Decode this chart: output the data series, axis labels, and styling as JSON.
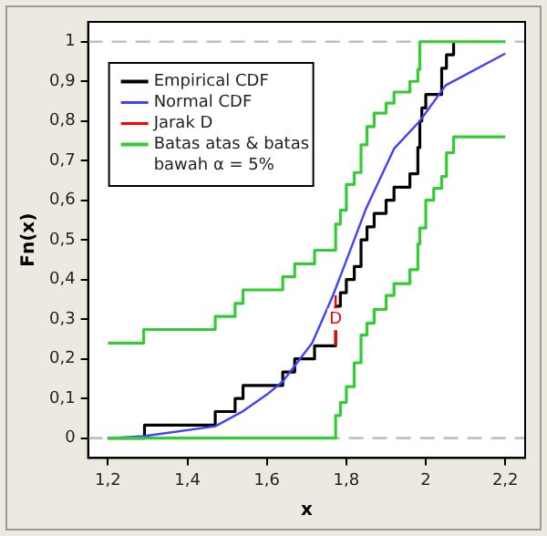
{
  "chart_data": {
    "type": "step",
    "xlabel": "x",
    "ylabel": "Fn(x)",
    "xlim": [
      1.15,
      2.25
    ],
    "ylim": [
      -0.05,
      1.05
    ],
    "xticks": [
      {
        "value": 1.2,
        "label": "1,2"
      },
      {
        "value": 1.4,
        "label": "1,4"
      },
      {
        "value": 1.6,
        "label": "1,6"
      },
      {
        "value": 1.8,
        "label": "1,8"
      },
      2,
      {
        "value": 2.2,
        "label": "2,2"
      }
    ],
    "yticks": [
      0,
      {
        "value": 0.1,
        "label": "0,1"
      },
      {
        "value": 0.2,
        "label": "0,2"
      },
      {
        "value": 0.3,
        "label": "0,3"
      },
      {
        "value": 0.4,
        "label": "0,4"
      },
      {
        "value": 0.5,
        "label": "0,5"
      },
      {
        "value": 0.6,
        "label": "0,6"
      },
      {
        "value": 0.7,
        "label": "0,7"
      },
      {
        "value": 0.8,
        "label": "0,8"
      },
      {
        "value": 0.9,
        "label": "0,9"
      },
      1
    ],
    "grid": false,
    "legend": "top left",
    "ref_lines": [
      {
        "axis": "y",
        "value": 0,
        "label": null,
        "color": "#c0c0c0",
        "line_style": "dashed"
      },
      {
        "axis": "y",
        "value": 1,
        "label": null,
        "color": "#c0c0c0",
        "line_style": "dashed"
      }
    ],
    "annotations": [
      {
        "text": "D",
        "x": 1.773,
        "y": 0.3
      }
    ],
    "series": [
      {
        "name": "Empirical CDF",
        "type": "step",
        "color": "#000000",
        "x": [
          1.2,
          1.292,
          1.47,
          1.52,
          1.54,
          1.64,
          1.67,
          1.72,
          1.773,
          1.785,
          1.8,
          1.82,
          1.837,
          1.852,
          1.87,
          1.9,
          1.92,
          1.96,
          1.98,
          1.985,
          1.99,
          2.0,
          2.04,
          2.052,
          2.07
        ],
        "values": [
          0,
          0.033,
          0.067,
          0.1,
          0.133,
          0.167,
          0.2,
          0.233,
          0.333,
          0.367,
          0.4,
          0.433,
          0.5,
          0.533,
          0.567,
          0.6,
          0.633,
          0.667,
          0.733,
          0.8,
          0.833,
          0.867,
          0.933,
          0.967,
          1
        ]
      },
      {
        "name": "Normal CDF",
        "type": "line",
        "color": "#4040ff",
        "x": [
          1.2,
          1.29,
          1.47,
          1.54,
          1.6,
          1.64,
          1.714,
          1.766,
          1.8,
          1.85,
          1.92,
          1.985,
          2.05,
          2.2
        ],
        "values": [
          0,
          0.005,
          0.03,
          0.068,
          0.11,
          0.143,
          0.24,
          0.359,
          0.448,
          0.58,
          0.73,
          0.8,
          0.89,
          0.97
        ]
      },
      {
        "name": "Jarak D",
        "type": "line",
        "color": "#ff0000",
        "x": [
          1.773,
          1.773
        ],
        "values": [
          0.233,
          0.36
        ]
      },
      {
        "name": "Batas atas & batas bawah α = 5%",
        "type": "step",
        "color": "#33cc33",
        "x": [
          1.2,
          1.29,
          1.47,
          1.52,
          1.54,
          1.64,
          1.67,
          1.72,
          1.773,
          1.785,
          1.8,
          1.82,
          1.837,
          1.852,
          1.87,
          1.9,
          1.92,
          1.96,
          1.98,
          1.985,
          2.2
        ],
        "values": [
          0.24,
          0.274,
          0.307,
          0.34,
          0.374,
          0.407,
          0.44,
          0.474,
          0.54,
          0.575,
          0.64,
          0.67,
          0.74,
          0.786,
          0.82,
          0.845,
          0.873,
          0.9,
          0.93,
          1,
          1
        ]
      },
      {
        "type": "step",
        "color": "#33cc33",
        "x": [
          1.2,
          1.773,
          1.785,
          1.8,
          1.82,
          1.837,
          1.852,
          1.87,
          1.9,
          1.92,
          1.96,
          1.98,
          1.985,
          2.0,
          2.02,
          2.04,
          2.052,
          2.07,
          2.2
        ],
        "values": [
          0,
          0.057,
          0.09,
          0.13,
          0.19,
          0.26,
          0.29,
          0.325,
          0.36,
          0.39,
          0.425,
          0.49,
          0.53,
          0.6,
          0.63,
          0.66,
          0.72,
          0.76,
          0.76
        ]
      }
    ]
  }
}
